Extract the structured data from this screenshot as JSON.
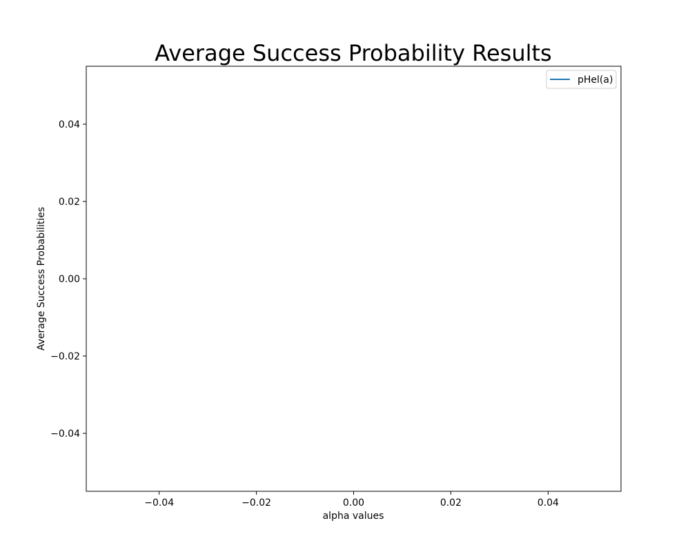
{
  "chart_data": {
    "type": "line",
    "title": "Average Success Probability Results",
    "xlabel": "alpha values",
    "ylabel": "Average Success Probabilities",
    "xlim": [
      -0.055,
      0.055
    ],
    "ylim": [
      -0.055,
      0.055
    ],
    "x_ticks": [
      -0.04,
      -0.02,
      0.0,
      0.02,
      0.04
    ],
    "x_tick_labels": [
      "−0.04",
      "−0.02",
      "0.00",
      "0.02",
      "0.04"
    ],
    "y_ticks": [
      -0.04,
      -0.02,
      0.0,
      0.02,
      0.04
    ],
    "y_tick_labels": [
      "−0.04",
      "−0.02",
      "0.00",
      "0.02",
      "0.04"
    ],
    "grid": false,
    "legend_position": "upper right",
    "series": [
      {
        "name": "pHel(a)",
        "color": "#1f77b4",
        "x": [],
        "y": []
      }
    ]
  }
}
